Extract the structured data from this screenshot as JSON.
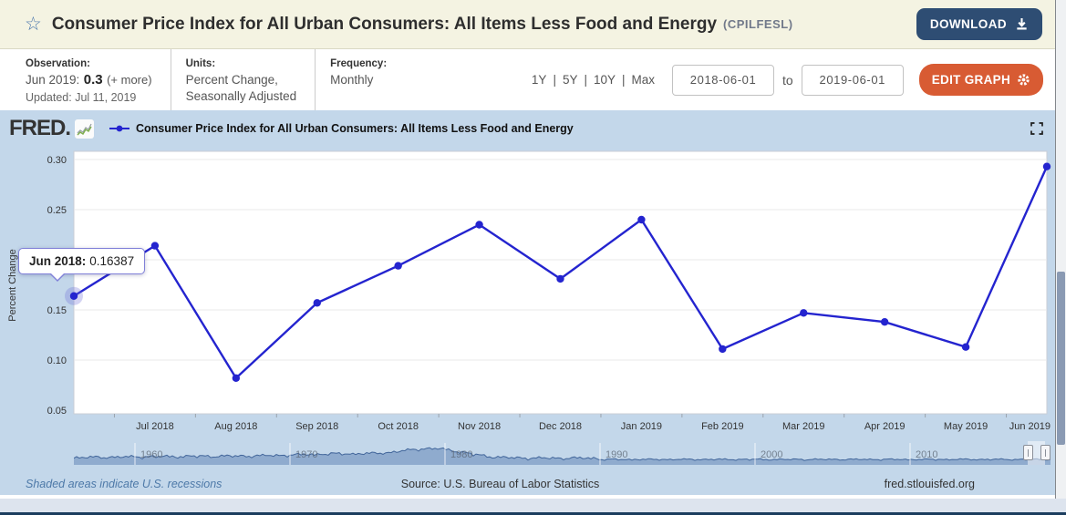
{
  "header": {
    "title": "Consumer Price Index for All Urban Consumers: All Items Less Food and Energy",
    "series_id": "(CPILFESL)",
    "download_label": "DOWNLOAD"
  },
  "toolbar": {
    "observation": {
      "label": "Observation:",
      "date": "Jun 2019:",
      "value": "0.3",
      "more": "(+ more)",
      "updated": "Updated: Jul 11, 2019"
    },
    "units": {
      "label": "Units:",
      "line1": "Percent Change,",
      "line2": "Seasonally Adjusted"
    },
    "frequency": {
      "label": "Frequency:",
      "value": "Monthly"
    },
    "ranges": [
      "1Y",
      "5Y",
      "10Y",
      "Max"
    ],
    "range_separator": "|",
    "date_from": "2018-06-01",
    "to_label": "to",
    "date_to": "2019-06-01",
    "edit_graph_label": "EDIT GRAPH"
  },
  "chart": {
    "brand": "FRED.",
    "legend": "Consumer Price Index for All Urban Consumers: All Items Less Food and Energy",
    "tooltip": {
      "label": "Jun 2018:",
      "value": "0.16387"
    }
  },
  "chart_data": {
    "type": "line",
    "title": "Consumer Price Index for All Urban Consumers: All Items Less Food and Energy",
    "ylabel": "Percent Change",
    "x": [
      "Jun 2018",
      "Jul 2018",
      "Aug 2018",
      "Sep 2018",
      "Oct 2018",
      "Nov 2018",
      "Dec 2018",
      "Jan 2019",
      "Feb 2019",
      "Mar 2019",
      "Apr 2019",
      "May 2019",
      "Jun 2019"
    ],
    "values": [
      0.16387,
      0.214,
      0.082,
      0.157,
      0.194,
      0.235,
      0.181,
      0.24,
      0.111,
      0.147,
      0.138,
      0.113,
      0.293
    ],
    "x_tick_labels": [
      "Jul 2018",
      "Aug 2018",
      "Sep 2018",
      "Oct 2018",
      "Nov 2018",
      "Dec 2018",
      "Jan 2019",
      "Feb 2019",
      "Mar 2019",
      "Apr 2019",
      "May 2019",
      "Jun 2019"
    ],
    "y_ticks": [
      0.05,
      0.1,
      0.15,
      0.2,
      0.25,
      0.3
    ],
    "ylim": [
      0.05,
      0.3
    ],
    "grid": true,
    "legend_position": "top",
    "line_color": "#2424cf"
  },
  "scrubber": {
    "year_labels": [
      "1960",
      "1970",
      "1980",
      "1990",
      "2000",
      "2010"
    ]
  },
  "footer": {
    "recessions_note": "Shaded areas indicate U.S. recessions",
    "source": "Source: U.S. Bureau of Labor Statistics",
    "site": "fred.stlouisfed.org"
  },
  "colors": {
    "accent_navy": "#2e4d73",
    "accent_orange": "#d85b33",
    "panel_blue": "#c3d7ea",
    "line_blue": "#2424cf",
    "header_cream": "#f4f3e2"
  }
}
